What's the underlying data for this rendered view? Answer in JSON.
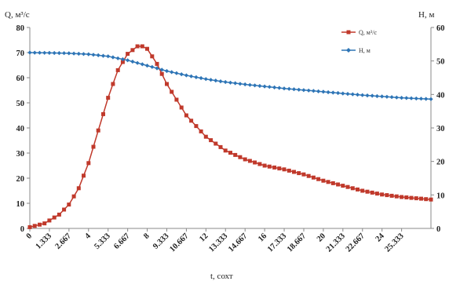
{
  "chart_data": {
    "type": "line",
    "xlabel": "t, сохт",
    "y_left_label": "Q, м³/с",
    "y_right_label": "H, м",
    "ylim_left": [
      0,
      80
    ],
    "ylim_right": [
      0,
      60
    ],
    "yticks_left": [
      "0",
      "10",
      "20",
      "30",
      "40",
      "50",
      "60",
      "70",
      "80"
    ],
    "yticks_right": [
      "0",
      "10",
      "20",
      "30",
      "40",
      "50",
      "60"
    ],
    "xlim": [
      0,
      27.333
    ],
    "xtick_labels": [
      "0",
      "1.333",
      "2.667",
      "4",
      "5.333",
      "6.667",
      "8",
      "9.333",
      "10.667",
      "12",
      "13.333",
      "14.667",
      "16",
      "17.333",
      "18.667",
      "20",
      "21.333",
      "22.667",
      "24",
      "25.333"
    ],
    "xtick_values": [
      0,
      1.333,
      2.667,
      4,
      5.333,
      6.667,
      8,
      9.333,
      10.667,
      12,
      13.333,
      14.667,
      16,
      17.333,
      18.667,
      20,
      21.333,
      22.667,
      24,
      25.333
    ],
    "legend_position": "top-right",
    "series": [
      {
        "name": "Q, м³/с",
        "axis": "left",
        "color": "#c0392b",
        "marker": "square",
        "x": [
          0,
          1,
          2,
          2.667,
          3.333,
          4,
          4.667,
          5.333,
          6,
          6.667,
          7.333,
          7.667,
          8,
          8.667,
          9.333,
          10.667,
          12,
          13.333,
          14.667,
          16,
          17.333,
          18.667,
          20,
          21.333,
          22.667,
          24,
          25.333,
          27.333
        ],
        "values": [
          0.5,
          2,
          5.5,
          9.5,
          16,
          26,
          39,
          52,
          63,
          69.5,
          72.5,
          72.5,
          71.5,
          65.5,
          57.5,
          45,
          36.5,
          31,
          27.5,
          25,
          23.5,
          21.5,
          19,
          17,
          15,
          13.5,
          12.5,
          11.5
        ]
      },
      {
        "name": "H, м",
        "axis": "right",
        "color": "#2e75b6",
        "marker": "diamond",
        "x": [
          0,
          1.333,
          2.667,
          4,
          5.333,
          6.667,
          8,
          9.333,
          10.667,
          12,
          13.333,
          14.667,
          16,
          17.333,
          18.667,
          20,
          21.333,
          22.667,
          24,
          25.333,
          27.333
        ],
        "values": [
          52.5,
          52.4,
          52.3,
          52,
          51.4,
          50.2,
          48.6,
          47,
          45.7,
          44.6,
          43.7,
          43,
          42.4,
          41.8,
          41.3,
          40.8,
          40.3,
          39.8,
          39.4,
          39,
          38.6
        ]
      }
    ]
  }
}
